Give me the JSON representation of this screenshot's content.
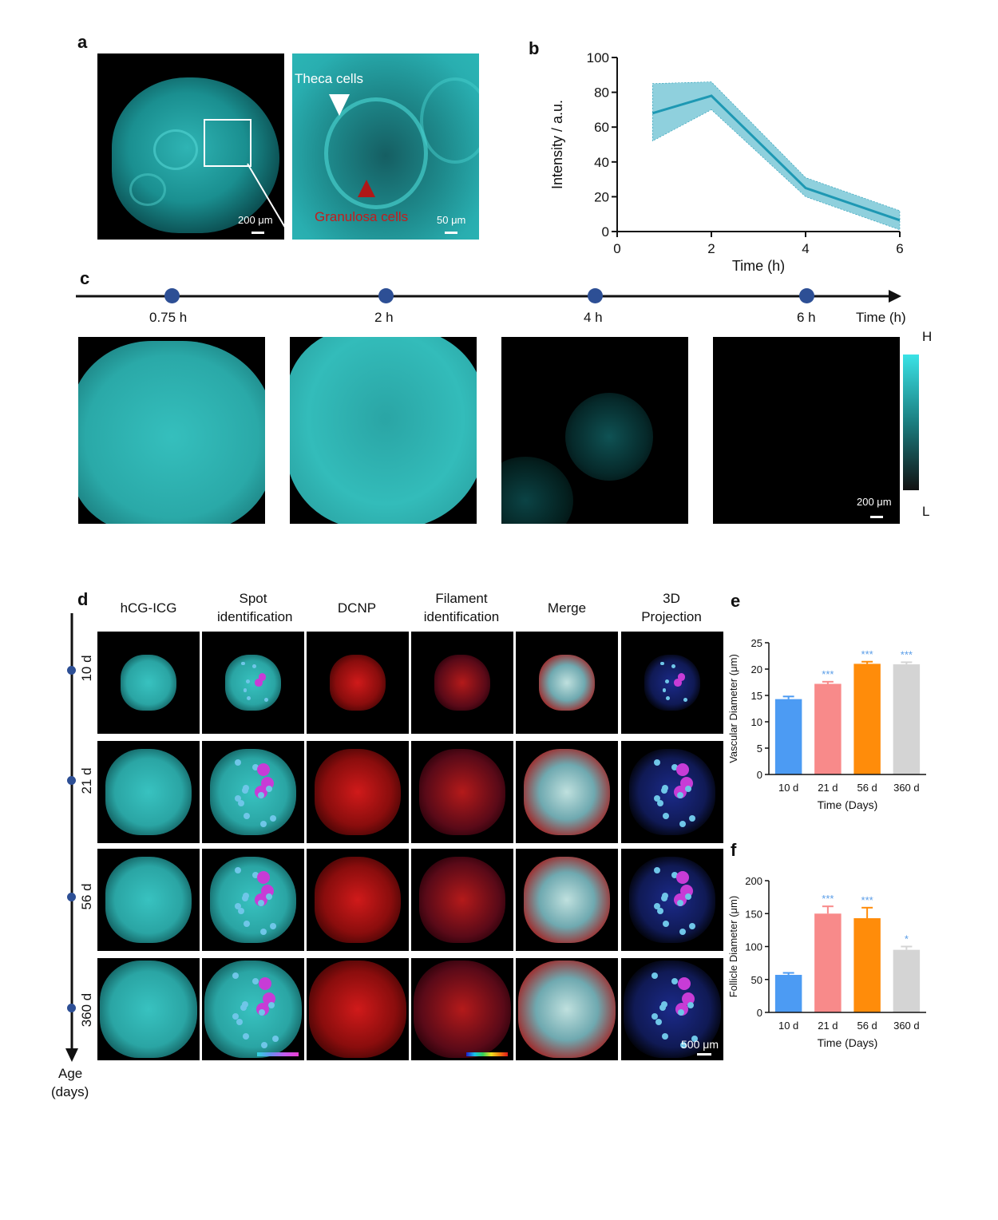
{
  "panel_a": {
    "label": "a",
    "scale_left": "200 μm",
    "scale_right": "50 μm",
    "theca": "Theca cells",
    "granulosa": "Granulosa cells"
  },
  "panel_b": {
    "label": "b"
  },
  "panel_c": {
    "label": "c",
    "timepoints": [
      "0.75 h",
      "2 h",
      "4 h",
      "6 h"
    ],
    "axis_label": "Time (h)",
    "colorbar_high": "H",
    "colorbar_low": "L",
    "scale": "200 μm"
  },
  "panel_d": {
    "label": "d",
    "columns": [
      "hCG-ICG",
      "Spot identification",
      "DCNP",
      "Filament identification",
      "Merge",
      "3D Projection"
    ],
    "rows": [
      "10 d",
      "21 d",
      "56 d",
      "360 d"
    ],
    "axis_label_1": "Age",
    "axis_label_2": "(days)",
    "scale": "500 μm"
  },
  "panel_e": {
    "label": "e"
  },
  "panel_f": {
    "label": "f"
  },
  "chart_data": [
    {
      "id": "b",
      "type": "line",
      "xlabel": "Time (h)",
      "ylabel": "Intensity / a.u.",
      "xlim": [
        0,
        6
      ],
      "ylim": [
        0,
        100
      ],
      "xticks": [
        0,
        2,
        4,
        6
      ],
      "yticks": [
        0,
        20,
        40,
        60,
        80,
        100
      ],
      "x": [
        0.75,
        2,
        4,
        6
      ],
      "y": [
        68,
        78,
        25,
        6.5
      ],
      "upper": [
        85,
        86,
        31,
        12
      ],
      "lower": [
        52,
        70,
        20,
        1
      ],
      "color": "#1e98b3",
      "band_color": "#8fd0dd"
    },
    {
      "id": "e",
      "type": "bar",
      "xlabel": "Time (Days)",
      "ylabel": "Vascular Diameter (μm)",
      "categories": [
        "10 d",
        "21 d",
        "56 d",
        "360 d"
      ],
      "values": [
        14.3,
        17.2,
        21.0,
        20.9
      ],
      "errors": [
        0.5,
        0.4,
        0.4,
        0.4
      ],
      "significance": [
        "",
        "***",
        "***",
        "***"
      ],
      "ylim": [
        0,
        25
      ],
      "yticks": [
        0,
        5,
        10,
        15,
        20,
        25
      ],
      "colors": [
        "#4c9bf3",
        "#f88a8a",
        "#ff8c0a",
        "#d4d4d4"
      ],
      "sig_color": "#5b9ee8"
    },
    {
      "id": "f",
      "type": "bar",
      "xlabel": "Time (Days)",
      "ylabel": "Follicle Diameter (μm)",
      "categories": [
        "10 d",
        "21 d",
        "56 d",
        "360 d"
      ],
      "values": [
        57,
        150,
        143,
        95
      ],
      "errors": [
        3,
        11,
        16,
        5
      ],
      "significance": [
        "",
        "***",
        "***",
        "*"
      ],
      "ylim": [
        0,
        200
      ],
      "yticks": [
        0,
        50,
        100,
        150,
        200
      ],
      "colors": [
        "#4c9bf3",
        "#f88a8a",
        "#ff8c0a",
        "#d4d4d4"
      ],
      "sig_color": "#5b9ee8"
    }
  ]
}
